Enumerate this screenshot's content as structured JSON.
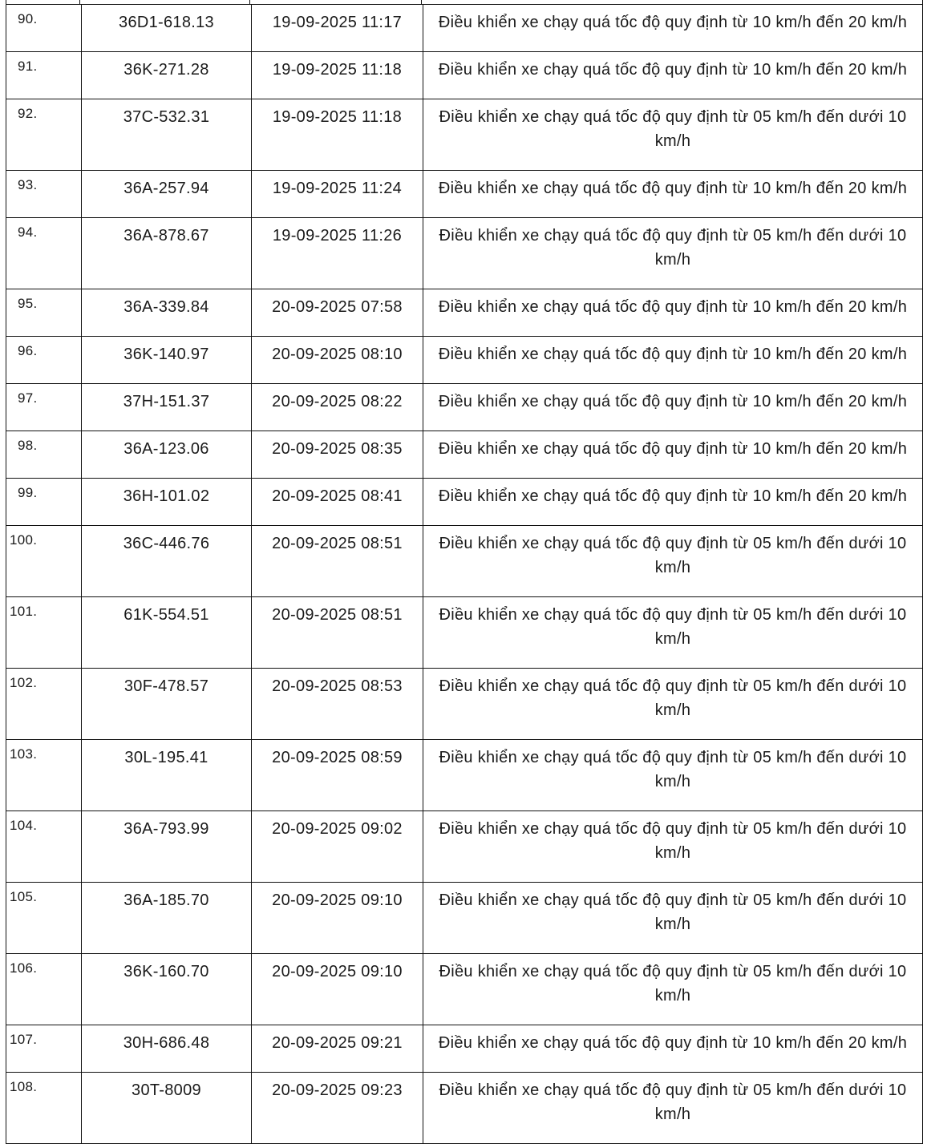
{
  "table": {
    "rows": [
      {
        "no": "90.",
        "plate": "36D1-618.13",
        "time": "19-09-2025 11:17",
        "violation": "Điều khiển xe chạy quá tốc độ quy định từ 10 km/h đến 20 km/h"
      },
      {
        "no": "91.",
        "plate": "36K-271.28",
        "time": "19-09-2025 11:18",
        "violation": "Điều khiển xe chạy quá tốc độ quy định từ 10 km/h đến 20 km/h"
      },
      {
        "no": "92.",
        "plate": "37C-532.31",
        "time": "19-09-2025 11:18",
        "violation": "Điều khiển xe chạy quá tốc độ quy định từ 05 km/h đến dưới 10 km/h"
      },
      {
        "no": "93.",
        "plate": "36A-257.94",
        "time": "19-09-2025 11:24",
        "violation": "Điều khiển xe chạy quá tốc độ quy định từ 10 km/h đến 20 km/h"
      },
      {
        "no": "94.",
        "plate": "36A-878.67",
        "time": "19-09-2025 11:26",
        "violation": "Điều khiển xe chạy quá tốc độ quy định từ 05 km/h đến dưới 10 km/h"
      },
      {
        "no": "95.",
        "plate": "36A-339.84",
        "time": "20-09-2025 07:58",
        "violation": "Điều khiển xe chạy quá tốc độ quy định từ 10 km/h đến 20 km/h"
      },
      {
        "no": "96.",
        "plate": "36K-140.97",
        "time": "20-09-2025 08:10",
        "violation": "Điều khiển xe chạy quá tốc độ quy định từ 10 km/h đến 20 km/h"
      },
      {
        "no": "97.",
        "plate": "37H-151.37",
        "time": "20-09-2025 08:22",
        "violation": "Điều khiển xe chạy quá tốc độ quy định từ 10 km/h đến 20 km/h"
      },
      {
        "no": "98.",
        "plate": "36A-123.06",
        "time": "20-09-2025 08:35",
        "violation": "Điều khiển xe chạy quá tốc độ quy định từ 10 km/h đến 20 km/h"
      },
      {
        "no": "99.",
        "plate": "36H-101.02",
        "time": "20-09-2025 08:41",
        "violation": "Điều khiển xe chạy quá tốc độ quy định từ 10 km/h đến 20 km/h"
      },
      {
        "no": "100.",
        "plate": "36C-446.76",
        "time": "20-09-2025 08:51",
        "violation": "Điều khiển xe chạy quá tốc độ quy định từ 05 km/h đến dưới 10 km/h"
      },
      {
        "no": "101.",
        "plate": "61K-554.51",
        "time": "20-09-2025 08:51",
        "violation": "Điều khiển xe chạy quá tốc độ quy định từ 05 km/h đến dưới 10 km/h"
      },
      {
        "no": "102.",
        "plate": "30F-478.57",
        "time": "20-09-2025 08:53",
        "violation": "Điều khiển xe chạy quá tốc độ quy định từ 05 km/h đến dưới 10 km/h"
      },
      {
        "no": "103.",
        "plate": "30L-195.41",
        "time": "20-09-2025 08:59",
        "violation": "Điều khiển xe chạy quá tốc độ quy định từ 05 km/h đến dưới 10 km/h"
      },
      {
        "no": "104.",
        "plate": "36A-793.99",
        "time": "20-09-2025 09:02",
        "violation": "Điều khiển xe chạy quá tốc độ quy định từ 05 km/h đến dưới 10 km/h"
      },
      {
        "no": "105.",
        "plate": "36A-185.70",
        "time": "20-09-2025 09:10",
        "violation": "Điều khiển xe chạy quá tốc độ quy định từ 05 km/h đến dưới 10 km/h"
      },
      {
        "no": "106.",
        "plate": "36K-160.70",
        "time": "20-09-2025 09:10",
        "violation": "Điều khiển xe chạy quá tốc độ quy định từ 05 km/h đến dưới 10 km/h"
      },
      {
        "no": "107.",
        "plate": "30H-686.48",
        "time": "20-09-2025 09:21",
        "violation": "Điều khiển xe chạy quá tốc độ quy định từ 10 km/h đến 20 km/h"
      },
      {
        "no": "108.",
        "plate": "30T-8009",
        "time": "20-09-2025 09:23",
        "violation": "Điều khiển xe chạy quá tốc độ quy định từ 05 km/h đến dưới 10 km/h"
      }
    ]
  }
}
